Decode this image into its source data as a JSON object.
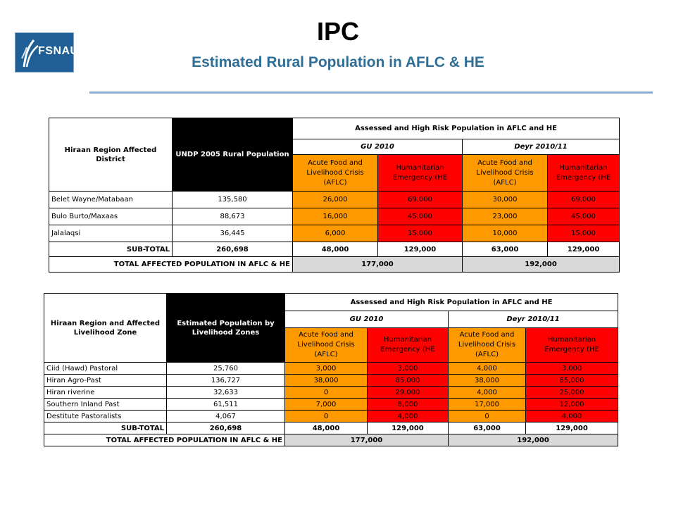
{
  "header": {
    "logo_text": "FSNAU",
    "title": "IPC",
    "subtitle": "Estimated Rural Population in AFLC & HE"
  },
  "colors": {
    "orange": "#ff9900",
    "red": "#ff0000",
    "black": "#000000",
    "grey": "#d9d9d9",
    "subtitle": "#2f6e97"
  },
  "table1": {
    "col1_header": "Hiraan Region  Affected District",
    "col2_header": "UNDP 2005 Rural Population",
    "group_header": "Assessed and High Risk Population in AFLC and HE",
    "season1": "GU 2010",
    "season2": "Deyr 2010/11",
    "aflc_header": "Acute Food and Livelihood Crisis (AFLC)",
    "he_header": "Humanitarian Emergency (HE",
    "rows": [
      {
        "name": "Belet Wayne/Matabaan",
        "pop": "135,580",
        "gu_aflc": "26,000",
        "gu_he": "69,000",
        "deyr_aflc": "30,000",
        "deyr_he": "69,000"
      },
      {
        "name": "Bulo Burto/Maxaas",
        "pop": "88,673",
        "gu_aflc": "16,000",
        "gu_he": "45,000",
        "deyr_aflc": "23,000",
        "deyr_he": "45,000"
      },
      {
        "name": "Jalalaqsi",
        "pop": "36,445",
        "gu_aflc": "6,000",
        "gu_he": "15,000",
        "deyr_aflc": "10,000",
        "deyr_he": "15,000"
      }
    ],
    "subtotal": {
      "label": "SUB-TOTAL",
      "pop": "260,698",
      "gu_aflc": "48,000",
      "gu_he": "129,000",
      "deyr_aflc": "63,000",
      "deyr_he": "129,000"
    },
    "total": {
      "label": "TOTAL  AFFECTED POPULATION  IN AFLC & HE",
      "gu": "177,000",
      "deyr": "192,000"
    }
  },
  "table2": {
    "col1_header": "Hiraan Region and Affected Livelihood Zone",
    "col2_header": "Estimated Population by Livelihood Zones",
    "group_header": "Assessed and High Risk Population in AFLC and HE",
    "season1": "GU 2010",
    "season2": "Deyr 2010/11",
    "aflc_header": "Acute Food and Livelihood Crisis (AFLC)",
    "he_header": "Humanitarian Emergency (HE",
    "rows": [
      {
        "name": "Ciid (Hawd) Pastoral",
        "pop": "25,760",
        "gu_aflc": "3,000",
        "gu_he": "3,000",
        "deyr_aflc": "4,000",
        "deyr_he": "3,000"
      },
      {
        "name": "Hiran  Agro-Past",
        "pop": "136,727",
        "gu_aflc": "38,000",
        "gu_he": "85,000",
        "deyr_aflc": "38,000",
        "deyr_he": "85,000"
      },
      {
        "name": "Hiran riverine",
        "pop": "32,633",
        "gu_aflc": "0",
        "gu_he": "29,000",
        "deyr_aflc": "4,000",
        "deyr_he": "25,000"
      },
      {
        "name": "Southern Inland Past",
        "pop": "61,511",
        "gu_aflc": "7,000",
        "gu_he": "8,000",
        "deyr_aflc": "17,000",
        "deyr_he": "12,000"
      },
      {
        "name": "Destitute Pastoralists",
        "pop": "4,067",
        "gu_aflc": "0",
        "gu_he": "4,000",
        "deyr_aflc": "0",
        "deyr_he": "4,000"
      }
    ],
    "subtotal": {
      "label": "SUB-TOTAL",
      "pop": "260,698",
      "gu_aflc": "48,000",
      "gu_he": "129,000",
      "deyr_aflc": "63,000",
      "deyr_he": "129,000"
    },
    "total": {
      "label": "TOTAL AFFECTED POPULATION IN AFLC & HE",
      "gu": "177,000",
      "deyr": "192,000"
    }
  }
}
